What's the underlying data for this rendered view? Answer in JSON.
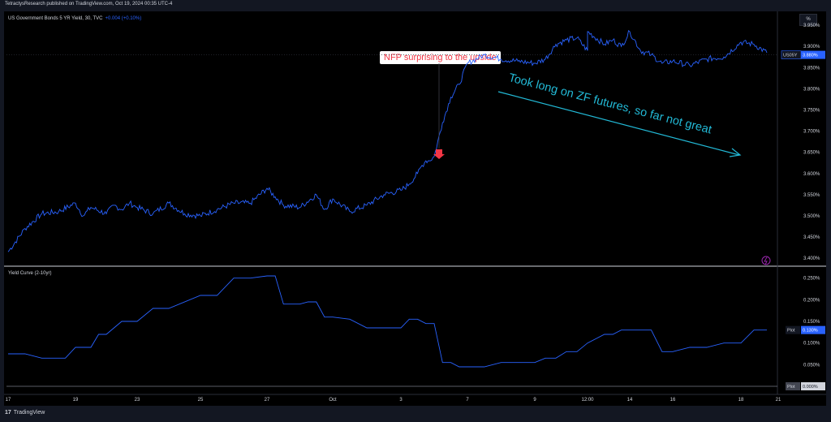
{
  "header": {
    "published_line": "TetractysResearch published on TradingView.com, Oct 19, 2024 00:35 UTC-4",
    "percent_button": "%"
  },
  "footer": {
    "logo_mark": "17",
    "logo_text": "TradingView"
  },
  "colors": {
    "series": "#2962ff",
    "annotation_text": "#f23645",
    "arrow_text": "#22b9d6",
    "price_tag": "#2962ff"
  },
  "chart_data": [
    {
      "type": "line",
      "title": "US Government Bonds 5 YR Yield, 30, TVC",
      "change_text": "+0.004 (+0.10%)",
      "series": [
        {
          "x": [
            "17",
            "17.5",
            "18",
            "18.5",
            "19",
            "19.5",
            "20",
            "21",
            "21.5",
            "22",
            "22.5",
            "23",
            "23.5",
            "24",
            "24.5",
            "25",
            "25.5",
            "26",
            "26.5",
            "27",
            "27.5",
            "28",
            "29",
            "30",
            "30.5",
            "Oct",
            "1.5",
            "2",
            "2.5",
            "3",
            "3.5",
            "4",
            "4.2",
            "4.5",
            "4.7",
            "5",
            "5.5",
            "6",
            "6.5",
            "7",
            "7.5",
            "8",
            "8.5",
            "9",
            "9.5",
            "10",
            "10.5",
            "11",
            "11.5",
            "12:00",
            "12.5",
            "13",
            "13.5",
            "14",
            "14.5",
            "15",
            "15.5",
            "16",
            "16.5",
            "17",
            "17.5",
            "18",
            "18.5",
            "19"
          ],
          "values": [
            3.415,
            3.47,
            3.505,
            3.51,
            3.53,
            3.5,
            3.52,
            3.505,
            3.525,
            3.515,
            3.53,
            3.52,
            3.505,
            3.53,
            3.505,
            3.5,
            3.515,
            3.53,
            3.53,
            3.565,
            3.545,
            3.525,
            3.52,
            3.55,
            3.515,
            3.54,
            3.51,
            3.525,
            3.55,
            3.56,
            3.575,
            3.6,
            3.615,
            3.63,
            3.63,
            3.64,
            3.72,
            3.78,
            3.81,
            3.86,
            3.88,
            3.87,
            3.865,
            3.86,
            3.87,
            3.905,
            3.915,
            3.92,
            3.89,
            3.935,
            3.905,
            3.915,
            3.9,
            3.935,
            3.89,
            3.88,
            3.86,
            3.865,
            3.855,
            3.87,
            3.875,
            3.91,
            3.905,
            3.885
          ]
        }
      ],
      "price_axis": {
        "ticks": [
          "3.950%",
          "3.900%",
          "3.850%",
          "3.800%",
          "3.750%",
          "3.700%",
          "3.650%",
          "3.600%",
          "3.550%",
          "3.500%",
          "3.450%",
          "3.400%"
        ],
        "ylim": [
          3.385,
          3.975
        ]
      },
      "last_price_tag": {
        "symbol": "US05Y",
        "value": "3.880%",
        "y": 3.88
      },
      "annotations": {
        "callout": "NFP surprising to the upside",
        "trend_note": "Took long on ZF futures, so far not great"
      }
    },
    {
      "type": "line",
      "title": "Yield Curve (2-10yr)",
      "series": [
        {
          "x": [
            "17",
            "17.5",
            "18",
            "18.7",
            "19",
            "20",
            "20.5",
            "21",
            "22",
            "23",
            "23.5",
            "24",
            "25",
            "25.5",
            "26",
            "26.5",
            "27",
            "27.5",
            "28",
            "28.5",
            "29",
            "29.5",
            "30",
            "30.5",
            "Oct",
            "1.5",
            "2",
            "3",
            "3.5",
            "4",
            "4.5",
            "5",
            "5.5",
            "6",
            "6.5",
            "7",
            "7.5",
            "8",
            "9",
            "9.5",
            "10",
            "10.5",
            "11",
            "11.5",
            "12:00",
            "12.5",
            "13",
            "13.5",
            "14",
            "14.5",
            "15",
            "15.5",
            "16",
            "16.5",
            "17",
            "17.5",
            "18",
            "18.5",
            "19"
          ],
          "values": [
            0.075,
            0.075,
            0.065,
            0.065,
            0.09,
            0.09,
            0.12,
            0.12,
            0.15,
            0.15,
            0.18,
            0.18,
            0.21,
            0.21,
            0.25,
            0.25,
            0.255,
            0.255,
            0.19,
            0.19,
            0.19,
            0.195,
            0.195,
            0.16,
            0.16,
            0.155,
            0.135,
            0.135,
            0.155,
            0.155,
            0.145,
            0.145,
            0.055,
            0.055,
            0.045,
            0.045,
            0.045,
            0.055,
            0.055,
            0.065,
            0.065,
            0.08,
            0.08,
            0.1,
            0.1,
            0.12,
            0.12,
            0.13,
            0.13,
            0.13,
            0.13,
            0.08,
            0.08,
            0.09,
            0.09,
            0.1,
            0.1,
            0.13,
            0.13
          ]
        }
      ],
      "price_axis": {
        "ticks": [
          "0.250%",
          "0.200%",
          "0.150%",
          "0.100%",
          "0.050%"
        ],
        "ylim": [
          0.0,
          0.27
        ]
      },
      "plot_tag": {
        "label": "Plot",
        "value": "0.130%",
        "y": 0.13
      },
      "zero_tag": {
        "label": "Plot",
        "value": "0.000%"
      }
    }
  ],
  "time_axis": [
    "17",
    "19",
    "23",
    "25",
    "27",
    "Oct",
    "3",
    "7",
    "9",
    "12:00",
    "14",
    "16",
    "18",
    "21"
  ]
}
